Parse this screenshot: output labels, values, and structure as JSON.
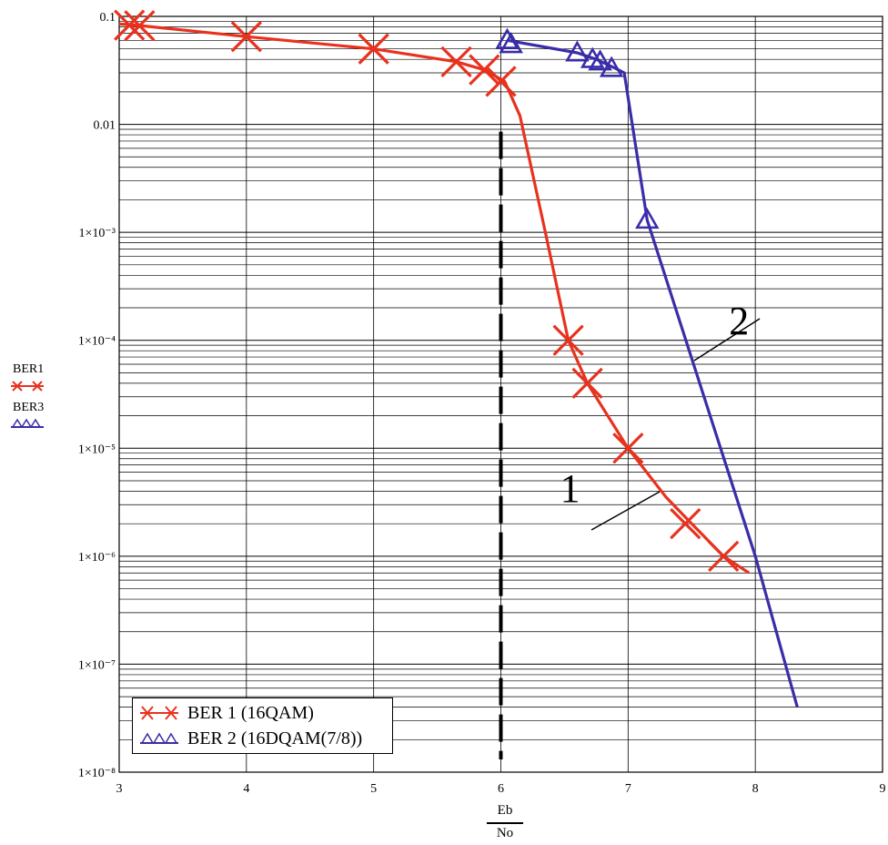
{
  "chart_data": {
    "type": "line",
    "x_axis": {
      "min": 3,
      "max": 9,
      "ticks": [
        3,
        4,
        5,
        6,
        7,
        8,
        9
      ],
      "label_top": "Eb",
      "label_bottom": "No"
    },
    "y_axis": {
      "scale": "log",
      "min": 1e-08,
      "max": 0.1,
      "ticks": [
        {
          "value": 0.1,
          "label": "0.1"
        },
        {
          "value": 0.01,
          "label": "0.01"
        },
        {
          "value": 0.001,
          "label": "1×10⁻³"
        },
        {
          "value": 0.0001,
          "label": "1×10⁻⁴"
        },
        {
          "value": 1e-05,
          "label": "1×10⁻⁵"
        },
        {
          "value": 1e-06,
          "label": "1×10⁻⁶"
        },
        {
          "value": 1e-07,
          "label": "1×10⁻⁷"
        },
        {
          "value": 1e-08,
          "label": "1×10⁻⁸"
        }
      ],
      "series_labels": [
        "BER1",
        "BER3"
      ]
    },
    "grid": true,
    "series": [
      {
        "name": "BER 1 (16QAM)",
        "color": "#e8321e",
        "marker": "x",
        "line": [
          [
            3.0,
            0.085
          ],
          [
            3.13,
            0.083
          ],
          [
            4.0,
            0.065
          ],
          [
            5.0,
            0.05
          ],
          [
            5.65,
            0.038
          ],
          [
            5.87,
            0.032
          ],
          [
            6.03,
            0.025
          ],
          [
            6.15,
            0.012
          ],
          [
            6.35,
            0.001
          ],
          [
            6.53,
            0.0001
          ],
          [
            6.68,
            4e-05
          ],
          [
            7.0,
            1e-05
          ],
          [
            7.3,
            3.5e-06
          ],
          [
            7.5,
            2e-06
          ],
          [
            7.75,
            1e-06
          ],
          [
            7.95,
            7e-07
          ]
        ],
        "markers": [
          [
            3.08,
            0.083
          ],
          [
            3.16,
            0.082
          ],
          [
            4.0,
            0.065
          ],
          [
            5.0,
            0.05
          ],
          [
            5.65,
            0.038
          ],
          [
            5.87,
            0.032
          ],
          [
            6.0,
            0.025
          ],
          [
            6.53,
            0.0001
          ],
          [
            6.68,
            4e-05
          ],
          [
            7.0,
            1e-05
          ],
          [
            7.45,
            2e-06
          ],
          [
            7.75,
            1e-06
          ]
        ]
      },
      {
        "name": "BER 2 (16DQAM(7/8))",
        "color": "#3a2da8",
        "marker": "triangle",
        "line": [
          [
            6.05,
            0.06
          ],
          [
            6.6,
            0.046
          ],
          [
            6.75,
            0.04
          ],
          [
            6.9,
            0.033
          ],
          [
            6.97,
            0.03
          ],
          [
            7.15,
            0.0013
          ],
          [
            8.0,
            1e-06
          ],
          [
            8.33,
            4e-08
          ]
        ],
        "markers": [
          [
            6.05,
            0.06
          ],
          [
            6.08,
            0.055
          ],
          [
            6.6,
            0.046
          ],
          [
            6.72,
            0.04
          ],
          [
            6.78,
            0.038
          ],
          [
            6.87,
            0.033
          ],
          [
            7.15,
            0.0013
          ]
        ]
      }
    ],
    "annotations": [
      {
        "text": "1",
        "x": 6.48,
        "y": 4.2e-06
      },
      {
        "text": "2",
        "x": 7.75,
        "y": 0.00015
      }
    ],
    "reference_line": {
      "x": 6.0,
      "style": "dashed",
      "color": "#000000"
    }
  }
}
